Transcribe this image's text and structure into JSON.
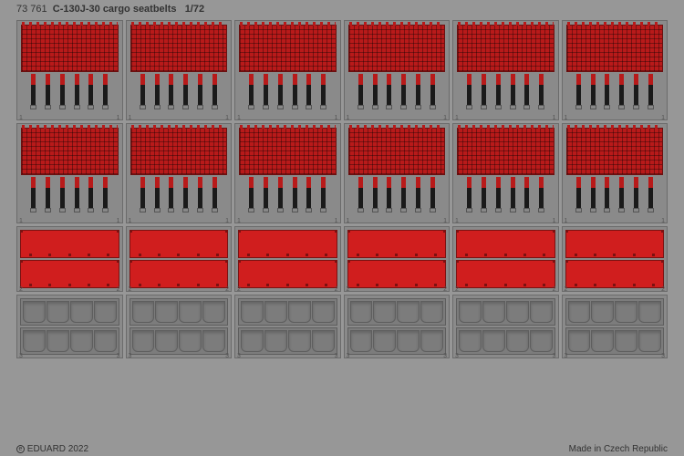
{
  "header": {
    "part_number": "73 761",
    "title": "C-130J-30 cargo seatbelts",
    "scale": "1/72"
  },
  "footer": {
    "copyright_symbol": "e",
    "copyright": "EDUARD 2022",
    "origin": "Made in Czech Republic"
  },
  "colors": {
    "sheet_bg": "#979797",
    "cell_bg": "#8a8a8a",
    "cell_border": "#6b6b6b",
    "mesh_red": "#b81a1a",
    "strap_black": "#1a1a1a",
    "panel_red": "#d01e1e",
    "cushion_gray": "#7c7c7c"
  },
  "layout": {
    "columns": 6,
    "mesh_rows": 2,
    "panel_rows": 1,
    "cushion_rows": 1,
    "straps_per_cell": 6,
    "panels_per_cell": 2,
    "cushions_per_cell": 2,
    "cushion_segments": 4,
    "panel_dots": 5
  },
  "labels": {
    "mesh": "1",
    "panel": "2",
    "cushion": "3"
  }
}
